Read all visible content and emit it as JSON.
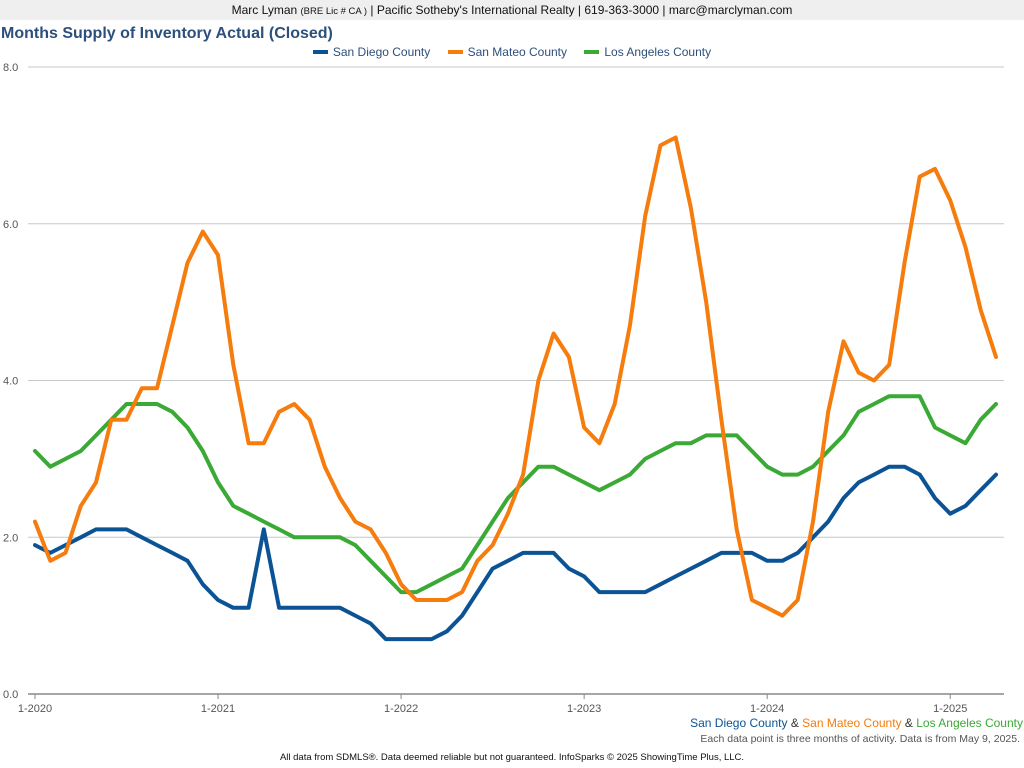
{
  "header": {
    "name": "Marc Lyman",
    "license": "(BRE Lic # CA )",
    "rest": "| Pacific Sotheby's International Realty | 619-363-3000 | marc@marclyman.com"
  },
  "footer": {
    "legend_sd": "San Diego County",
    "legend_amp1": " & ",
    "legend_sm": "San Mateo County",
    "legend_amp2": " & ",
    "legend_la": "Los Angeles County",
    "note": "Each data point is three months of activity. Data is from May 9, 2025.",
    "source": "All data from SDMLS®. Data deemed reliable but not guaranteed. InfoSparks © 2025 ShowingTime Plus, LLC."
  },
  "chart_data": {
    "type": "line",
    "title": "Months Supply of Inventory Actual (Closed)",
    "xlabel": "",
    "ylabel": "",
    "ylim": [
      0,
      8
    ],
    "yticks": [
      "0.0",
      "2.0",
      "4.0",
      "6.0",
      "8.0"
    ],
    "xticks": [
      "1-2020",
      "1-2021",
      "1-2022",
      "1-2023",
      "1-2024",
      "1-2025"
    ],
    "x_start": "2020-01",
    "x_end": "2025-04",
    "grid": true,
    "legend_position": "top",
    "series": [
      {
        "name": "San Diego County",
        "color": "#0b5394",
        "values": [
          1.9,
          1.8,
          1.9,
          2.0,
          2.1,
          2.1,
          2.1,
          2.0,
          1.9,
          1.8,
          1.7,
          1.4,
          1.2,
          1.1,
          1.1,
          2.1,
          1.1,
          1.1,
          1.1,
          1.1,
          1.1,
          1.0,
          0.9,
          0.7,
          0.7,
          0.7,
          0.7,
          0.8,
          1.0,
          1.3,
          1.6,
          1.7,
          1.8,
          1.8,
          1.8,
          1.6,
          1.5,
          1.3,
          1.3,
          1.3,
          1.3,
          1.4,
          1.5,
          1.6,
          1.7,
          1.8,
          1.8,
          1.8,
          1.7,
          1.7,
          1.8,
          2.0,
          2.2,
          2.5,
          2.7,
          2.8,
          2.9,
          2.9,
          2.8,
          2.5,
          2.3,
          2.4,
          2.6,
          2.8
        ]
      },
      {
        "name": "San Mateo County",
        "color": "#f57c0d",
        "values": [
          2.2,
          1.7,
          1.8,
          2.4,
          2.7,
          3.5,
          3.5,
          3.9,
          3.9,
          4.7,
          5.5,
          5.9,
          5.6,
          4.2,
          3.2,
          3.2,
          3.6,
          3.7,
          3.5,
          2.9,
          2.5,
          2.2,
          2.1,
          1.8,
          1.4,
          1.2,
          1.2,
          1.2,
          1.3,
          1.7,
          1.9,
          2.3,
          2.8,
          4.0,
          4.6,
          4.3,
          3.4,
          3.2,
          3.7,
          4.7,
          6.1,
          7.0,
          7.1,
          6.2,
          5.0,
          3.5,
          2.1,
          1.2,
          1.1,
          1.0,
          1.2,
          2.2,
          3.6,
          4.5,
          4.1,
          4.0,
          4.2,
          5.5,
          6.6,
          6.7,
          6.3,
          5.7,
          4.9,
          4.3
        ]
      },
      {
        "name": "Los Angeles County",
        "color": "#3aa935",
        "values": [
          3.1,
          2.9,
          3.0,
          3.1,
          3.3,
          3.5,
          3.7,
          3.7,
          3.7,
          3.6,
          3.4,
          3.1,
          2.7,
          2.4,
          2.3,
          2.2,
          2.1,
          2.0,
          2.0,
          2.0,
          2.0,
          1.9,
          1.7,
          1.5,
          1.3,
          1.3,
          1.4,
          1.5,
          1.6,
          1.9,
          2.2,
          2.5,
          2.7,
          2.9,
          2.9,
          2.8,
          2.7,
          2.6,
          2.7,
          2.8,
          3.0,
          3.1,
          3.2,
          3.2,
          3.3,
          3.3,
          3.3,
          3.1,
          2.9,
          2.8,
          2.8,
          2.9,
          3.1,
          3.3,
          3.6,
          3.7,
          3.8,
          3.8,
          3.8,
          3.4,
          3.3,
          3.2,
          3.5,
          3.7
        ]
      }
    ]
  }
}
